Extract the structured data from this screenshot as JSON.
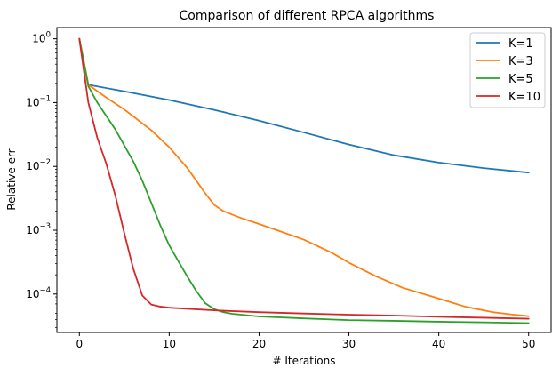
{
  "chart_data": {
    "type": "line",
    "title": "Comparison of different RPCA algorithms",
    "xlabel": "# Iterations",
    "ylabel": "Relative err",
    "xlim": [
      -2.5,
      52.5
    ],
    "ylim": [
      2.5e-05,
      1.5
    ],
    "yscale": "log",
    "grid": false,
    "legend_position": "top-right",
    "x_ticks": [
      0,
      10,
      20,
      30,
      40,
      50
    ],
    "y_ticks": [
      {
        "value": 1,
        "base": "10",
        "exp": "0"
      },
      {
        "value": 0.1,
        "base": "10",
        "exp": "−1"
      },
      {
        "value": 0.01,
        "base": "10",
        "exp": "−2"
      },
      {
        "value": 0.001,
        "base": "10",
        "exp": "−3"
      },
      {
        "value": 0.0001,
        "base": "10",
        "exp": "−4"
      }
    ],
    "series": [
      {
        "name": "K=1",
        "color": "#1f77b4",
        "x": [
          0,
          1,
          5,
          10,
          15,
          20,
          25,
          30,
          35,
          40,
          45,
          50
        ],
        "y": [
          1,
          0.19,
          0.15,
          0.11,
          0.077,
          0.052,
          0.034,
          0.022,
          0.015,
          0.0115,
          0.0094,
          0.008
        ]
      },
      {
        "name": "K=3",
        "color": "#ff7f0e",
        "x": [
          0,
          1,
          3,
          5,
          8,
          10,
          12,
          14,
          15,
          16,
          18,
          20,
          22,
          25,
          28,
          30,
          33,
          36,
          40,
          43,
          46,
          48,
          50
        ],
        "y": [
          1,
          0.19,
          0.12,
          0.078,
          0.037,
          0.02,
          0.0095,
          0.0038,
          0.0025,
          0.002,
          0.00155,
          0.00125,
          0.001,
          0.00071,
          0.00045,
          0.00031,
          0.00019,
          0.000125,
          8.5e-05,
          6.3e-05,
          5.2e-05,
          4.8e-05,
          4.5e-05
        ]
      },
      {
        "name": "K=5",
        "color": "#2ca02c",
        "x": [
          0,
          1,
          2,
          4,
          6,
          7,
          8,
          9,
          10,
          11,
          12,
          13,
          14,
          15,
          16,
          17,
          20,
          25,
          30,
          35,
          40,
          45,
          50
        ],
        "y": [
          1,
          0.18,
          0.1,
          0.038,
          0.012,
          0.006,
          0.0027,
          0.0012,
          0.00058,
          0.00033,
          0.00019,
          0.000112,
          7.2e-05,
          5.8e-05,
          5.2e-05,
          4.9e-05,
          4.45e-05,
          4.15e-05,
          3.9e-05,
          3.8e-05,
          3.68e-05,
          3.6e-05,
          3.5e-05
        ]
      },
      {
        "name": "K=10",
        "color": "#d62728",
        "x": [
          0,
          1,
          2,
          3,
          4,
          5,
          6,
          7,
          8,
          9,
          10,
          15,
          20,
          25,
          30,
          35,
          40,
          45,
          50
        ],
        "y": [
          1,
          0.1,
          0.028,
          0.011,
          0.0035,
          0.0009,
          0.00025,
          9.5e-05,
          6.85e-05,
          6.35e-05,
          6.1e-05,
          5.55e-05,
          5.2e-05,
          4.95e-05,
          4.75e-05,
          4.6e-05,
          4.4e-05,
          4.25e-05,
          4.1e-05
        ]
      }
    ]
  }
}
